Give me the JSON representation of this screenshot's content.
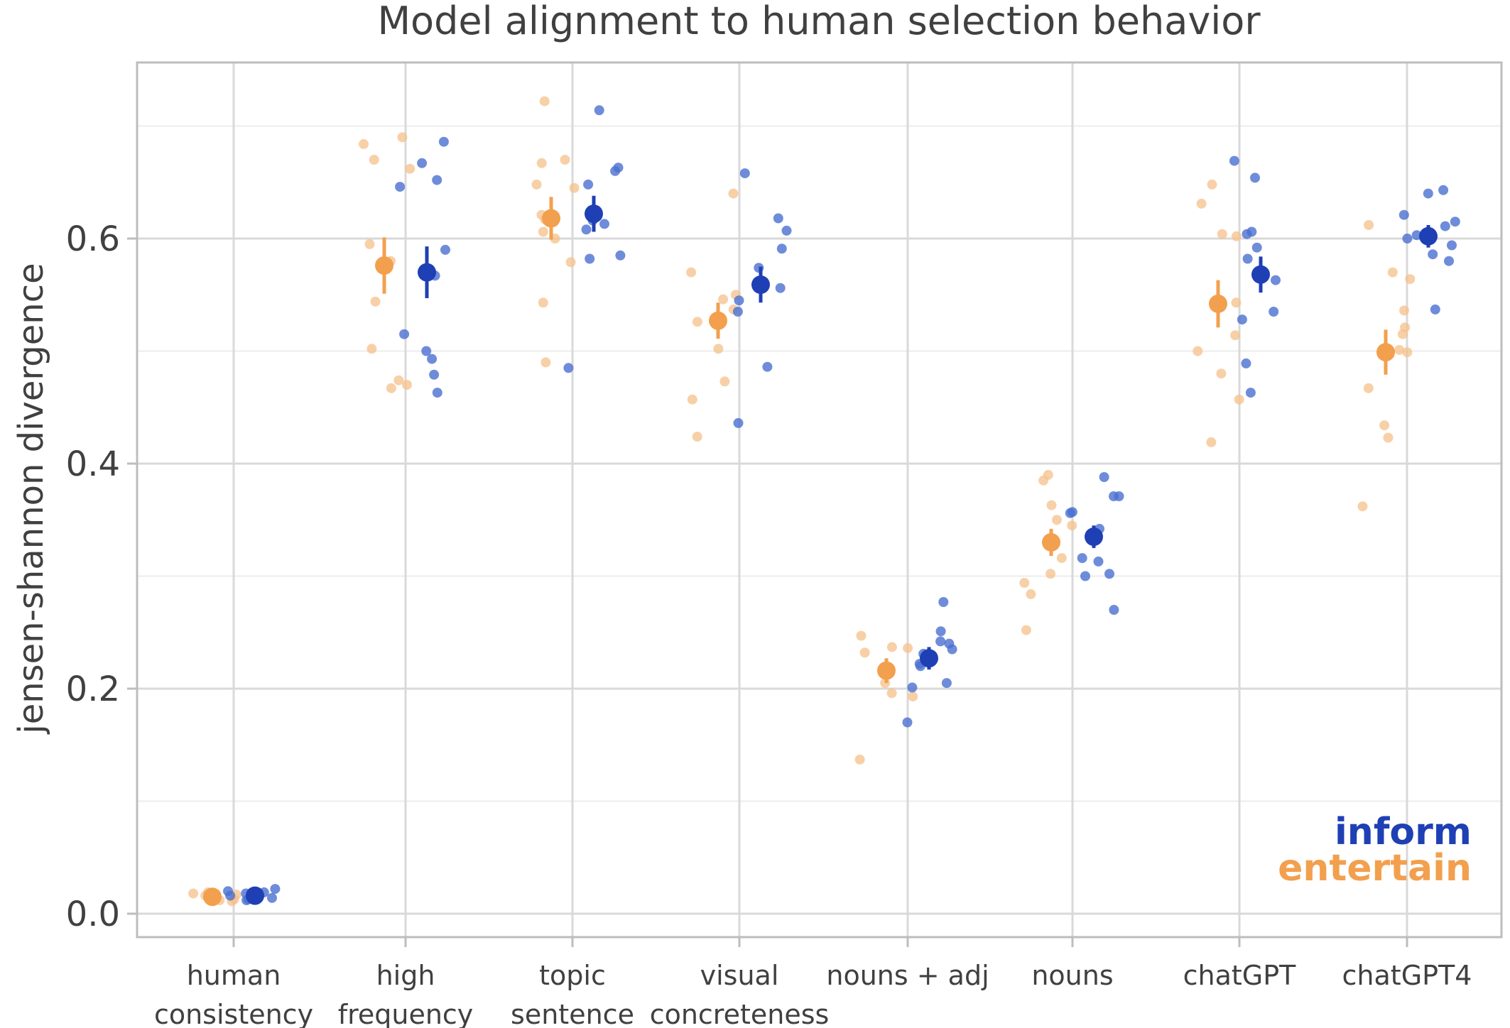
{
  "chart_data": {
    "type": "scatter",
    "title": "Model alignment to human selection behavior",
    "xlabel": "",
    "ylabel": "jensen-shannon divergence",
    "ylim": [
      -0.02,
      0.77
    ],
    "yticks": [
      0.0,
      0.2,
      0.4,
      0.6
    ],
    "ytick_labels": [
      "0.0",
      "0.2",
      "0.4",
      "0.6"
    ],
    "grid": true,
    "legend_position": "bottom-right",
    "colors": {
      "inform": "#1f3fb5",
      "inform_points": "#4a6fcf",
      "entertain": "#f2a04e",
      "entertain_points": "#f5c08a",
      "grid_major": "#d9d9d9",
      "grid_minor": "#ececec",
      "frame": "#bdbdbd"
    },
    "categories": [
      {
        "label_lines": [
          "human",
          "consistency"
        ]
      },
      {
        "label_lines": [
          "high",
          "frequency"
        ]
      },
      {
        "label_lines": [
          "topic",
          "sentence"
        ]
      },
      {
        "label_lines": [
          "visual",
          "concreteness"
        ]
      },
      {
        "label_lines": [
          "nouns + adj"
        ]
      },
      {
        "label_lines": [
          "nouns"
        ]
      },
      {
        "label_lines": [
          "chatGPT"
        ]
      },
      {
        "label_lines": [
          "chatGPT4"
        ]
      }
    ],
    "series": [
      {
        "name": "inform",
        "means": [
          0.016,
          0.57,
          0.622,
          0.559,
          0.227,
          0.335,
          0.568,
          0.602
        ],
        "error": [
          0.003,
          0.023,
          0.016,
          0.016,
          0.01,
          0.01,
          0.016,
          0.01
        ],
        "points": [
          [
            0.02,
            0.015,
            0.012,
            0.018,
            0.014,
            0.017,
            0.022,
            0.013,
            0.016,
            0.019
          ],
          [
            0.686,
            0.646,
            0.667,
            0.652,
            0.59,
            0.567,
            0.515,
            0.5,
            0.493,
            0.479,
            0.463
          ],
          [
            0.714,
            0.663,
            0.66,
            0.648,
            0.616,
            0.613,
            0.608,
            0.585,
            0.582,
            0.485
          ],
          [
            0.658,
            0.618,
            0.607,
            0.591,
            0.574,
            0.556,
            0.545,
            0.535,
            0.486,
            0.436
          ],
          [
            0.277,
            0.251,
            0.242,
            0.24,
            0.235,
            0.231,
            0.222,
            0.22,
            0.205,
            0.201,
            0.17
          ],
          [
            0.388,
            0.371,
            0.371,
            0.357,
            0.356,
            0.342,
            0.316,
            0.313,
            0.302,
            0.3,
            0.27
          ],
          [
            0.669,
            0.654,
            0.606,
            0.604,
            0.592,
            0.582,
            0.563,
            0.535,
            0.528,
            0.489,
            0.463
          ],
          [
            0.643,
            0.64,
            0.621,
            0.615,
            0.611,
            0.603,
            0.6,
            0.594,
            0.586,
            0.58,
            0.537
          ]
        ]
      },
      {
        "name": "entertain",
        "means": [
          0.015,
          0.576,
          0.618,
          0.527,
          0.216,
          0.33,
          0.542,
          0.499
        ],
        "error": [
          0.003,
          0.025,
          0.019,
          0.016,
          0.011,
          0.012,
          0.021,
          0.02
        ],
        "points": [
          [
            0.018,
            0.013,
            0.016,
            0.011,
            0.017,
            0.014,
            0.012,
            0.019
          ],
          [
            0.69,
            0.684,
            0.67,
            0.662,
            0.595,
            0.58,
            0.544,
            0.502,
            0.474,
            0.47,
            0.467
          ],
          [
            0.722,
            0.67,
            0.667,
            0.648,
            0.645,
            0.621,
            0.617,
            0.606,
            0.6,
            0.579,
            0.543,
            0.49
          ],
          [
            0.64,
            0.57,
            0.55,
            0.546,
            0.537,
            0.526,
            0.502,
            0.473,
            0.457,
            0.424
          ],
          [
            0.247,
            0.236,
            0.237,
            0.232,
            0.214,
            0.205,
            0.196,
            0.193,
            0.137
          ],
          [
            0.385,
            0.39,
            0.363,
            0.35,
            0.345,
            0.316,
            0.302,
            0.294,
            0.284,
            0.252
          ],
          [
            0.648,
            0.631,
            0.604,
            0.602,
            0.543,
            0.514,
            0.5,
            0.48,
            0.457,
            0.419
          ],
          [
            0.612,
            0.57,
            0.564,
            0.536,
            0.521,
            0.515,
            0.501,
            0.499,
            0.467,
            0.434,
            0.423,
            0.362
          ]
        ]
      }
    ],
    "legend": [
      {
        "label": "inform"
      },
      {
        "label": "entertain"
      }
    ]
  }
}
